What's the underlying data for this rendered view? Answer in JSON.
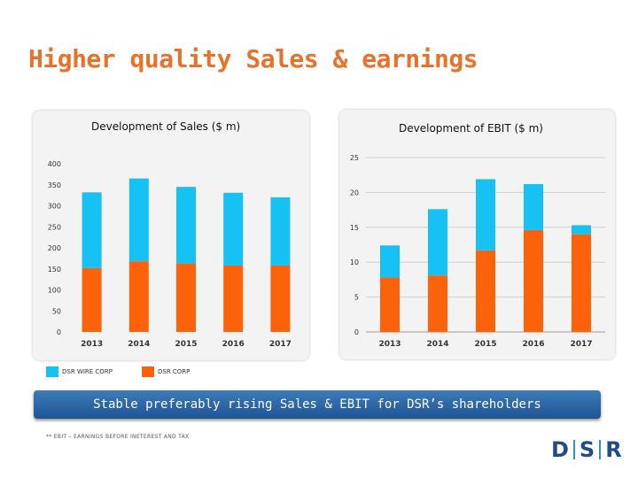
{
  "slide": {
    "title": "Higher quality Sales & earnings",
    "banner": "Stable preferably rising Sales & EBIT for DSR’s shareholders",
    "footnote": "** EBIT – EARNINGS BEFORE INETEREST AND TAX",
    "logo": {
      "letters": [
        "D",
        "S",
        "R"
      ]
    }
  },
  "legend": [
    {
      "label": "DSR WIRE CORP",
      "color": "#16c1f3"
    },
    {
      "label": "DSR CORP",
      "color": "#fb6209"
    }
  ],
  "chart_data": [
    {
      "type": "bar",
      "stacked": true,
      "title": "Development of Sales ($ m)",
      "categories": [
        "2013",
        "2014",
        "2015",
        "2016",
        "2017"
      ],
      "series": [
        {
          "name": "DSR CORP",
          "color": "#fb6209",
          "values": [
            152,
            168,
            163,
            158,
            158
          ]
        },
        {
          "name": "DSR WIRE CORP",
          "color": "#16c1f3",
          "values": [
            180,
            197,
            182,
            173,
            162
          ]
        }
      ],
      "ylim": [
        0,
        400
      ],
      "yticks": [
        0,
        50,
        100,
        150,
        200,
        250,
        300,
        350,
        400
      ],
      "grid": false
    },
    {
      "type": "bar",
      "stacked": true,
      "title": "Development of EBIT ($ m)",
      "categories": [
        "2013",
        "2014",
        "2015",
        "2016",
        "2017"
      ],
      "series": [
        {
          "name": "DSR CORP",
          "color": "#fb6209",
          "values": [
            7.8,
            8.1,
            11.7,
            14.6,
            14.0
          ]
        },
        {
          "name": "DSR WIRE CORP",
          "color": "#16c1f3",
          "values": [
            4.6,
            9.5,
            10.2,
            6.6,
            1.3
          ]
        }
      ],
      "ylim": [
        0,
        25
      ],
      "yticks": [
        0,
        5,
        10,
        15,
        20,
        25
      ],
      "grid": true
    }
  ]
}
